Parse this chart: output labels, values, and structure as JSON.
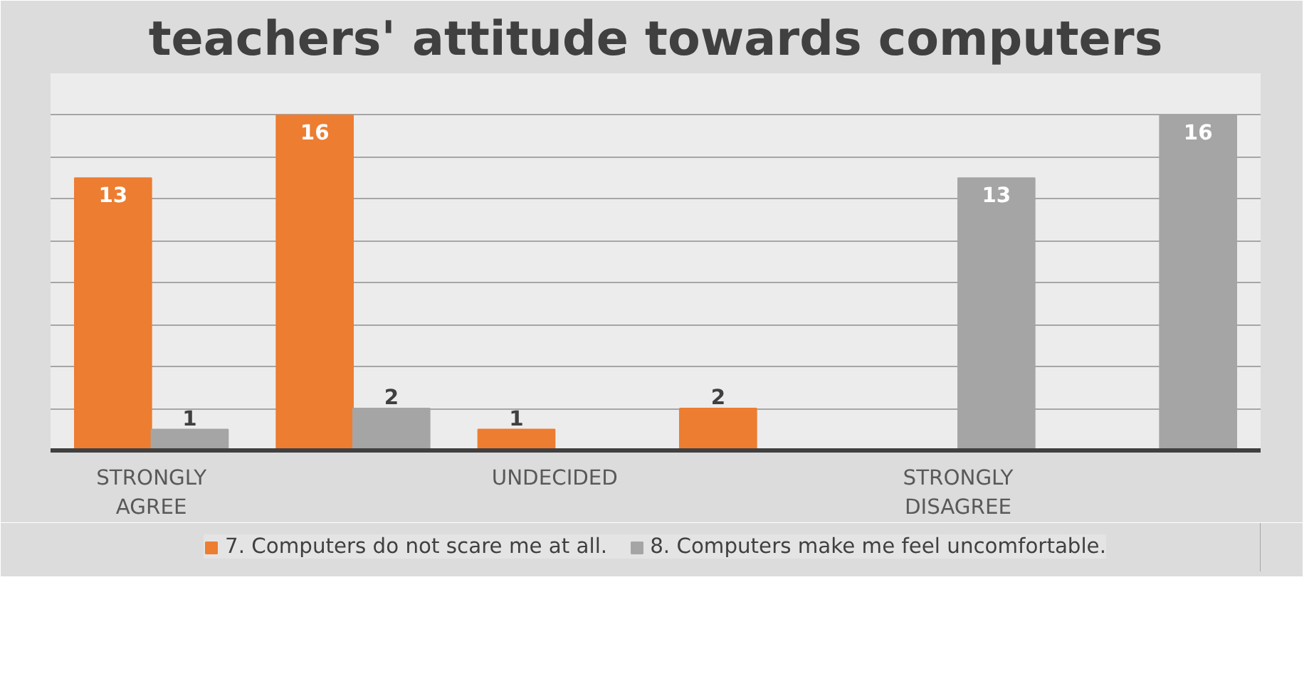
{
  "chart_data": {
    "type": "bar",
    "title": "teachers' attitude towards computers",
    "categories": [
      "STRONGLY AGREE",
      null,
      "UNDECIDED",
      null,
      "STRONGLY DISAGREE",
      null
    ],
    "series": [
      {
        "name": "7. Computers do not scare me at all.",
        "color": "#ed7d31",
        "values": [
          13,
          16,
          1,
          2,
          null,
          null
        ]
      },
      {
        "name": "8. Computers make me feel uncomfortable.",
        "color": "#a5a5a5",
        "values": [
          1,
          2,
          null,
          null,
          13,
          16
        ]
      }
    ],
    "ylim": [
      0,
      18
    ],
    "yticks": [
      {
        "value": 0,
        "label": null
      },
      {
        "value": 2,
        "label": null
      },
      {
        "value": 4,
        "label": null
      },
      {
        "value": 6,
        "label": null
      },
      {
        "value": 8,
        "label": null
      },
      {
        "value": 10,
        "label": null
      },
      {
        "value": 12,
        "label": null
      },
      {
        "value": 14,
        "label": null
      },
      {
        "value": 16,
        "label": null
      },
      {
        "value": 18,
        "label": null
      }
    ],
    "tick_labels": "x",
    "grid": "y",
    "legend": "bottom",
    "data_labels": true
  }
}
